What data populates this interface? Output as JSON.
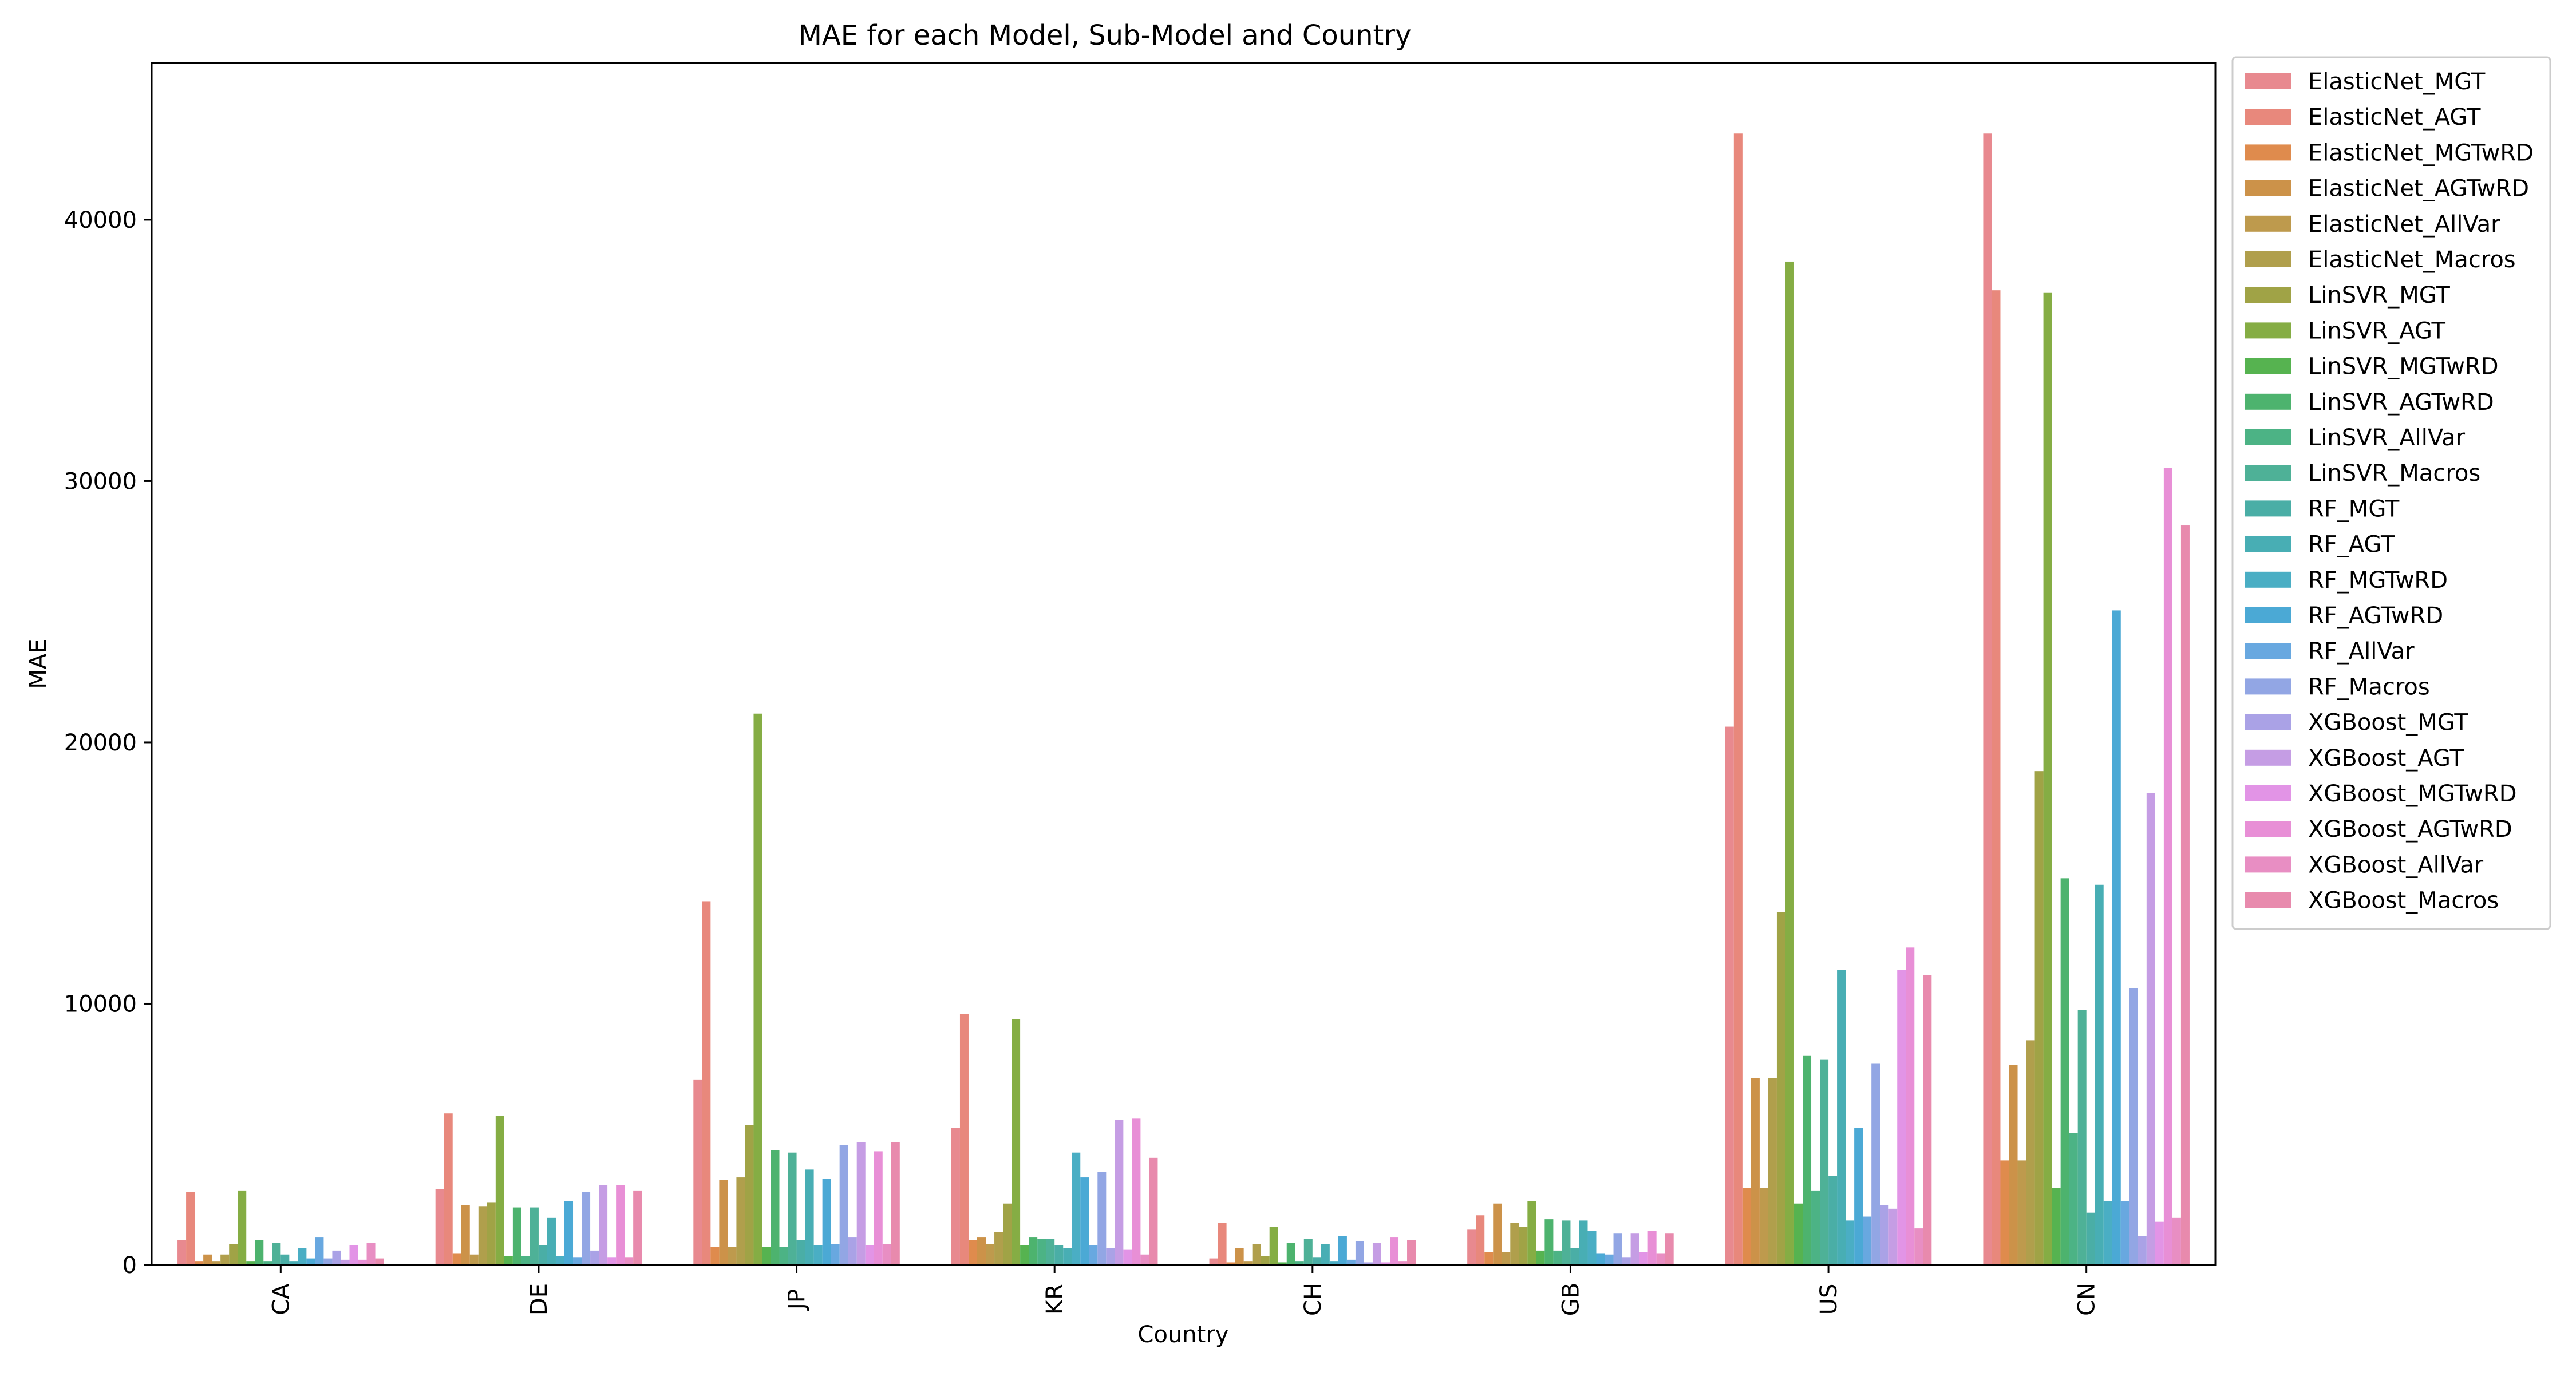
{
  "chart_data": {
    "type": "bar",
    "title": "MAE for each Model, Sub-Model and Country",
    "xlabel": "Country",
    "ylabel": "MAE",
    "ylim": [
      0,
      46000
    ],
    "yticks": [
      0,
      10000,
      20000,
      30000,
      40000
    ],
    "grid": false,
    "legend_position": "outside-right",
    "categories": [
      "CA",
      "DE",
      "JP",
      "KR",
      "CH",
      "GB",
      "US",
      "CN"
    ],
    "series": [
      {
        "name": "ElasticNet_MGT",
        "color": "#e8898f",
        "values": [
          950,
          2900,
          7100,
          5250,
          250,
          1350,
          20600,
          43300
        ]
      },
      {
        "name": "ElasticNet_AGT",
        "color": "#e8887c",
        "values": [
          2800,
          5800,
          13900,
          9600,
          1600,
          1900,
          43300,
          37300
        ]
      },
      {
        "name": "ElasticNet_MGTwRD",
        "color": "#df8b4d",
        "values": [
          150,
          450,
          700,
          950,
          100,
          500,
          2950,
          4000
        ]
      },
      {
        "name": "ElasticNet_AGTwRD",
        "color": "#cc9249",
        "values": [
          400,
          2300,
          3250,
          1050,
          650,
          2350,
          7150,
          7650
        ]
      },
      {
        "name": "ElasticNet_AllVar",
        "color": "#be9a4d",
        "values": [
          150,
          400,
          700,
          800,
          150,
          500,
          2950,
          4000
        ]
      },
      {
        "name": "ElasticNet_Macros",
        "color": "#b09f4c",
        "values": [
          400,
          2250,
          3350,
          1250,
          800,
          1600,
          7150,
          8600
        ]
      },
      {
        "name": "LinSVR_MGT",
        "color": "#a0a346",
        "values": [
          800,
          2400,
          5350,
          2350,
          350,
          1450,
          13500,
          18900
        ]
      },
      {
        "name": "LinSVR_AGT",
        "color": "#85ad44",
        "values": [
          2850,
          5700,
          21100,
          9400,
          1450,
          2450,
          38400,
          37200
        ]
      },
      {
        "name": "LinSVR_MGTwRD",
        "color": "#56b350",
        "values": [
          150,
          350,
          700,
          750,
          100,
          550,
          2350,
          2950
        ]
      },
      {
        "name": "LinSVR_AGTwRD",
        "color": "#4db36e",
        "values": [
          950,
          2200,
          4400,
          1050,
          850,
          1750,
          8000,
          14800
        ]
      },
      {
        "name": "LinSVR_AllVar",
        "color": "#4cb385",
        "values": [
          150,
          350,
          700,
          1000,
          150,
          550,
          2850,
          5050
        ]
      },
      {
        "name": "LinSVR_Macros",
        "color": "#4eb197",
        "values": [
          850,
          2200,
          4300,
          1000,
          1000,
          1700,
          7850,
          9750
        ]
      },
      {
        "name": "RF_MGT",
        "color": "#4aaea6",
        "values": [
          400,
          750,
          950,
          750,
          300,
          650,
          3400,
          2000
        ]
      },
      {
        "name": "RF_AGT",
        "color": "#48aeb4",
        "values": [
          150,
          1800,
          3650,
          650,
          800,
          1700,
          11300,
          14550
        ]
      },
      {
        "name": "RF_MGTwRD",
        "color": "#4aaec4",
        "values": [
          650,
          350,
          750,
          4300,
          150,
          1300,
          1700,
          2450
        ]
      },
      {
        "name": "RF_AGTwRD",
        "color": "#4ba9d5",
        "values": [
          250,
          2450,
          3300,
          3350,
          1100,
          450,
          5250,
          25050
        ]
      },
      {
        "name": "RF_AllVar",
        "color": "#68a8e0",
        "values": [
          1050,
          300,
          800,
          750,
          200,
          400,
          1850,
          2450
        ]
      },
      {
        "name": "RF_Macros",
        "color": "#92a6e4",
        "values": [
          250,
          2800,
          4600,
          3550,
          900,
          1200,
          7700,
          10600
        ]
      },
      {
        "name": "XGBoost_MGT",
        "color": "#aaa2e6",
        "values": [
          550,
          550,
          1050,
          650,
          100,
          300,
          2300,
          1100
        ]
      },
      {
        "name": "XGBoost_AGT",
        "color": "#c59de4",
        "values": [
          200,
          3050,
          4700,
          5550,
          850,
          1200,
          2150,
          18050
        ]
      },
      {
        "name": "XGBoost_MGTwRD",
        "color": "#e294e6",
        "values": [
          750,
          300,
          750,
          600,
          100,
          500,
          11300,
          1650
        ]
      },
      {
        "name": "XGBoost_AGTwRD",
        "color": "#e88fd6",
        "values": [
          200,
          3050,
          4350,
          5600,
          1050,
          1300,
          12150,
          30500
        ]
      },
      {
        "name": "XGBoost_AllVar",
        "color": "#e88ec3",
        "values": [
          850,
          300,
          800,
          400,
          150,
          450,
          1400,
          1800
        ]
      },
      {
        "name": "XGBoost_Macros",
        "color": "#e88aad",
        "values": [
          250,
          2850,
          4700,
          4100,
          950,
          1200,
          11100,
          28300
        ]
      }
    ]
  }
}
